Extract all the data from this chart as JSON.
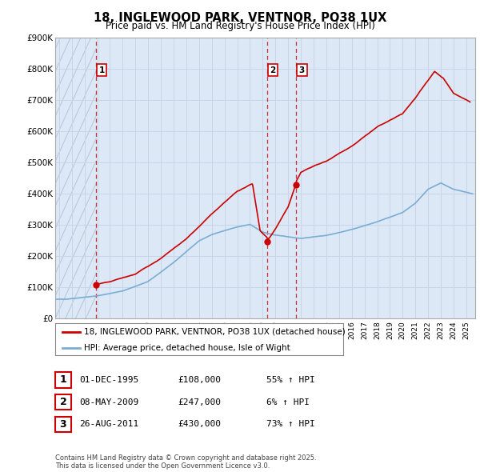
{
  "title": "18, INGLEWOOD PARK, VENTNOR, PO38 1UX",
  "subtitle": "Price paid vs. HM Land Registry's House Price Index (HPI)",
  "ylim": [
    0,
    900000
  ],
  "yticks": [
    0,
    100000,
    200000,
    300000,
    400000,
    500000,
    600000,
    700000,
    800000,
    900000
  ],
  "ytick_labels": [
    "£0",
    "£100K",
    "£200K",
    "£300K",
    "£400K",
    "£500K",
    "£600K",
    "£700K",
    "£800K",
    "£900K"
  ],
  "xlim_start": 1992.7,
  "xlim_end": 2025.7,
  "hpi_color": "#7aadd4",
  "price_color": "#cc0000",
  "grid_color": "#c8d4e8",
  "bg_color": "#dce8f5",
  "hatch_color": "#b8c8dc",
  "transactions": [
    {
      "year": 1995.92,
      "price": 108000,
      "label": "1"
    },
    {
      "year": 2009.36,
      "price": 247000,
      "label": "2"
    },
    {
      "year": 2011.65,
      "price": 430000,
      "label": "3"
    }
  ],
  "legend_line1": "18, INGLEWOOD PARK, VENTNOR, PO38 1UX (detached house)",
  "legend_line2": "HPI: Average price, detached house, Isle of Wight",
  "footer": "Contains HM Land Registry data © Crown copyright and database right 2025.\nThis data is licensed under the Open Government Licence v3.0.",
  "table_rows": [
    [
      "1",
      "01-DEC-1995",
      "£108,000",
      "55% ↑ HPI"
    ],
    [
      "2",
      "08-MAY-2009",
      "£247,000",
      "6% ↑ HPI"
    ],
    [
      "3",
      "26-AUG-2011",
      "£430,000",
      "73% ↑ HPI"
    ]
  ]
}
